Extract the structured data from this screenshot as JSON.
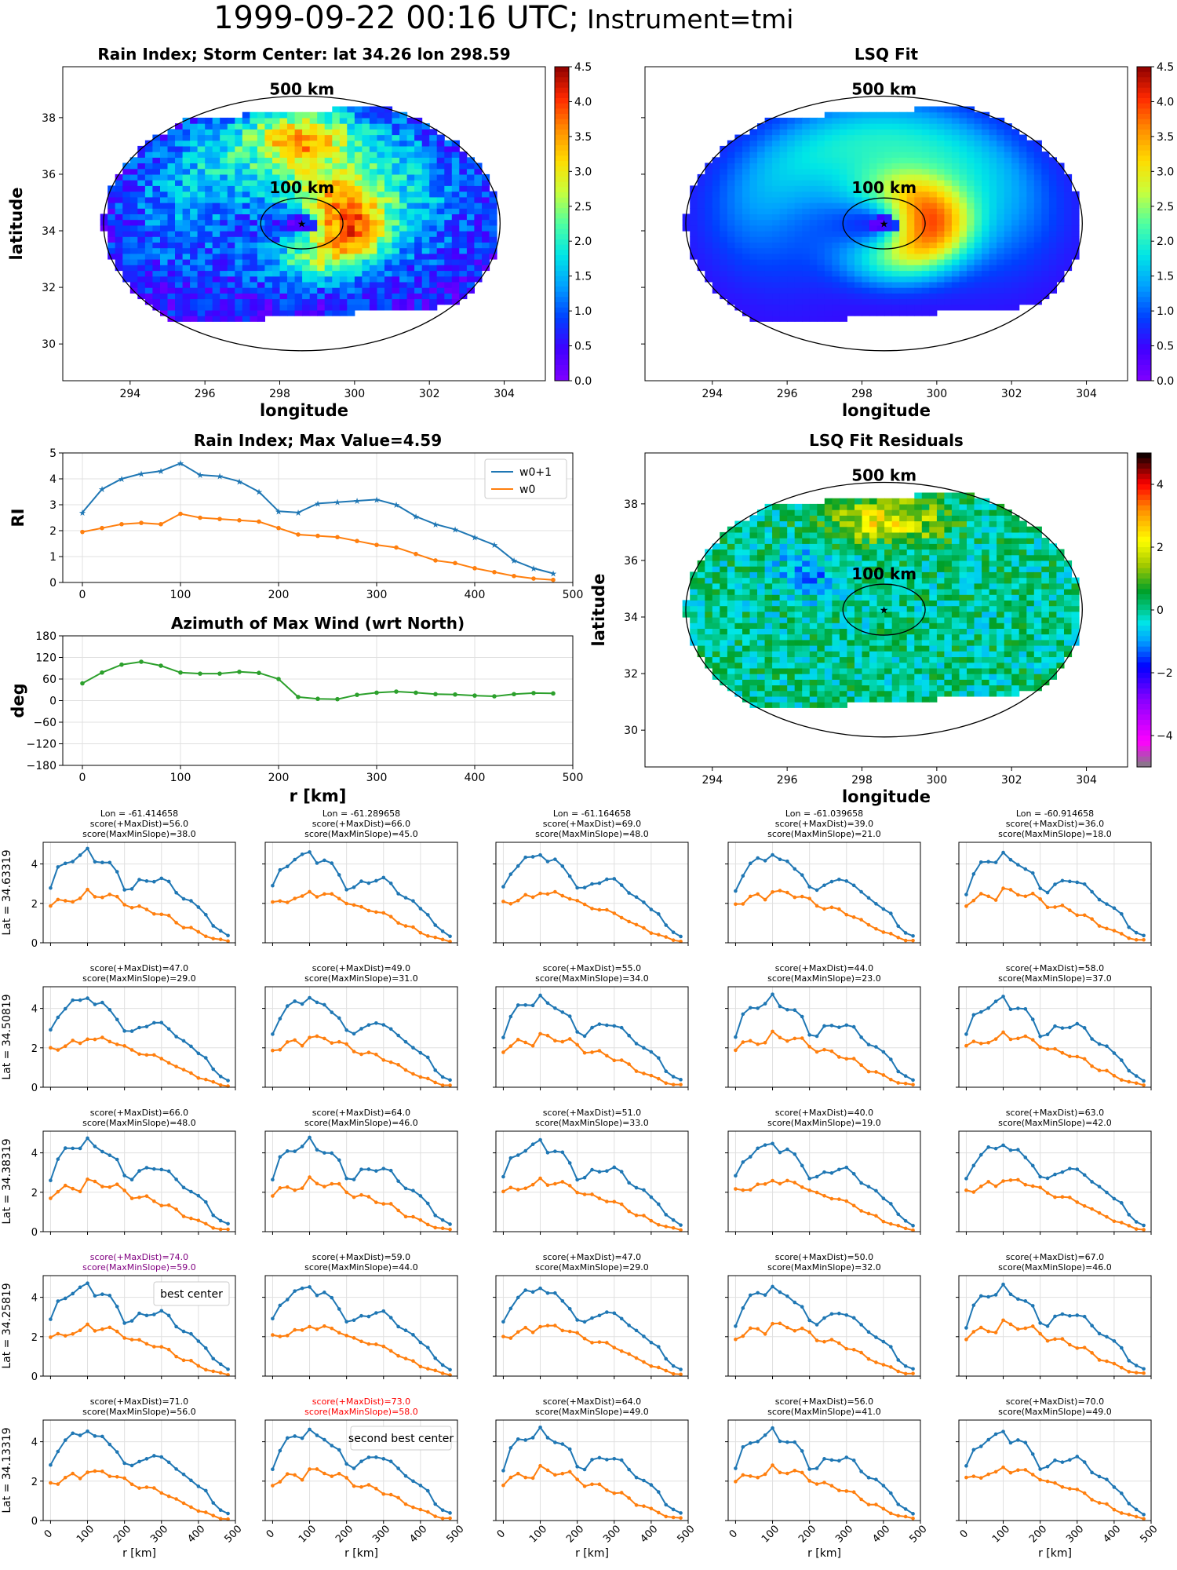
{
  "suptitle": {
    "main": "1999-09-22 00:16 UTC;",
    "sub": "Instrument=tmi"
  },
  "colors": {
    "w0p1": "#1f77b4",
    "w0": "#ff7f0e",
    "az": "#2ca02c",
    "best": "#800080",
    "second": "#ff0000",
    "ring": "#000000"
  },
  "maps": {
    "rain": {
      "title": "Rain Index; Storm Center: lat 34.26 lon 298.59",
      "xlabel": "longitude",
      "ylabel": "latitude",
      "ring_outer": "500 km",
      "ring_inner": "100 km",
      "xticks": [
        "294",
        "296",
        "298",
        "300",
        "302",
        "304"
      ],
      "yticks": [
        "30",
        "32",
        "34",
        "36",
        "38"
      ],
      "cbar_ticks": [
        "0.0",
        "0.5",
        "1.0",
        "1.5",
        "2.0",
        "2.5",
        "3.0",
        "3.5",
        "4.0",
        "4.5"
      ]
    },
    "fit": {
      "title": "LSQ Fit",
      "xlabel": "longitude",
      "ring_outer": "500 km",
      "ring_inner": "100 km",
      "xticks": [
        "294",
        "296",
        "298",
        "300",
        "302",
        "304"
      ],
      "cbar_ticks": [
        "0.0",
        "0.5",
        "1.0",
        "1.5",
        "2.0",
        "2.5",
        "3.0",
        "3.5",
        "4.0",
        "4.5"
      ]
    },
    "resid": {
      "title": "LSQ Fit Residuals",
      "xlabel": "longitude",
      "ylabel": "latitude",
      "ring_outer": "500 km",
      "ring_inner": "100 km",
      "xticks": [
        "294",
        "296",
        "298",
        "300",
        "302",
        "304"
      ],
      "yticks": [
        "30",
        "32",
        "34",
        "36",
        "38"
      ],
      "cbar_ticks": [
        "−4",
        "−2",
        "0",
        "2",
        "4"
      ]
    }
  },
  "chart_data": [
    {
      "type": "line",
      "title": "Rain Index; Max Value=4.59",
      "ylabel": "RI",
      "xlabel": "",
      "ylim": [
        0,
        5
      ],
      "xlim": [
        -20,
        500
      ],
      "legend": "top-right",
      "x": [
        0,
        20,
        40,
        60,
        80,
        100,
        120,
        140,
        160,
        180,
        200,
        220,
        240,
        260,
        280,
        300,
        320,
        340,
        360,
        380,
        400,
        420,
        440,
        460,
        480
      ],
      "series": [
        {
          "name": "w0+1",
          "values": [
            2.7,
            3.6,
            4.0,
            4.2,
            4.3,
            4.6,
            4.15,
            4.1,
            3.9,
            3.5,
            2.75,
            2.7,
            3.05,
            3.1,
            3.15,
            3.2,
            3.0,
            2.55,
            2.25,
            2.05,
            1.75,
            1.45,
            0.85,
            0.55,
            0.35
          ]
        },
        {
          "name": "w0",
          "values": [
            1.95,
            2.1,
            2.25,
            2.3,
            2.25,
            2.65,
            2.5,
            2.45,
            2.4,
            2.35,
            2.1,
            1.85,
            1.8,
            1.75,
            1.6,
            1.45,
            1.35,
            1.1,
            0.85,
            0.75,
            0.55,
            0.4,
            0.25,
            0.15,
            0.1
          ]
        }
      ]
    },
    {
      "type": "line",
      "title": "Azimuth of Max Wind (wrt North)",
      "ylabel": "deg",
      "xlabel": "r [km]",
      "ylim": [
        -180,
        180
      ],
      "xlim": [
        -20,
        500
      ],
      "x": [
        0,
        20,
        40,
        60,
        80,
        100,
        120,
        140,
        160,
        180,
        200,
        220,
        240,
        260,
        280,
        300,
        320,
        340,
        360,
        380,
        400,
        420,
        440,
        460,
        480
      ],
      "series": [
        {
          "values": [
            48,
            78,
            100,
            108,
            97,
            78,
            75,
            75,
            80,
            77,
            60,
            10,
            5,
            4,
            16,
            22,
            25,
            22,
            18,
            17,
            14,
            12,
            18,
            21,
            20
          ]
        }
      ]
    }
  ],
  "grid": {
    "xticks": [
      "0",
      "100",
      "200",
      "300",
      "400",
      "500"
    ],
    "yticks": [
      "0",
      "2",
      "4"
    ],
    "xlabel": "r [km]",
    "row_labels": [
      "Lat = 34.63319",
      "Lat = 34.50819",
      "Lat = 34.38319",
      "Lat = 34.25819",
      "Lat = 34.13319"
    ],
    "lon_labels": [
      "Lon = -61.414658",
      "Lon = -61.289658",
      "Lon = -61.164658",
      "Lon = -61.039658",
      "Lon = -60.914658"
    ],
    "legend_best": "best center",
    "legend_second": "second best center",
    "scores": [
      [
        [
          "score(+MaxDist)=56.0",
          "score(MaxMinSlope)=38.0"
        ],
        [
          "score(+MaxDist)=66.0",
          "score(MaxMinSlope)=45.0"
        ],
        [
          "score(+MaxDist)=69.0",
          "score(MaxMinSlope)=48.0"
        ],
        [
          "score(+MaxDist)=39.0",
          "score(MaxMinSlope)=21.0"
        ],
        [
          "score(+MaxDist)=36.0",
          "score(MaxMinSlope)=18.0"
        ]
      ],
      [
        [
          "score(+MaxDist)=47.0",
          "score(MaxMinSlope)=29.0"
        ],
        [
          "score(+MaxDist)=49.0",
          "score(MaxMinSlope)=31.0"
        ],
        [
          "score(+MaxDist)=55.0",
          "score(MaxMinSlope)=34.0"
        ],
        [
          "score(+MaxDist)=44.0",
          "score(MaxMinSlope)=23.0"
        ],
        [
          "score(+MaxDist)=58.0",
          "score(MaxMinSlope)=37.0"
        ]
      ],
      [
        [
          "score(+MaxDist)=66.0",
          "score(MaxMinSlope)=48.0"
        ],
        [
          "score(+MaxDist)=64.0",
          "score(MaxMinSlope)=46.0"
        ],
        [
          "score(+MaxDist)=51.0",
          "score(MaxMinSlope)=33.0"
        ],
        [
          "score(+MaxDist)=40.0",
          "score(MaxMinSlope)=19.0"
        ],
        [
          "score(+MaxDist)=63.0",
          "score(MaxMinSlope)=42.0"
        ]
      ],
      [
        [
          "score(+MaxDist)=74.0",
          "score(MaxMinSlope)=59.0"
        ],
        [
          "score(+MaxDist)=59.0",
          "score(MaxMinSlope)=44.0"
        ],
        [
          "score(+MaxDist)=47.0",
          "score(MaxMinSlope)=29.0"
        ],
        [
          "score(+MaxDist)=50.0",
          "score(MaxMinSlope)=32.0"
        ],
        [
          "score(+MaxDist)=67.0",
          "score(MaxMinSlope)=46.0"
        ]
      ],
      [
        [
          "score(+MaxDist)=71.0",
          "score(MaxMinSlope)=56.0"
        ],
        [
          "score(+MaxDist)=73.0",
          "score(MaxMinSlope)=58.0"
        ],
        [
          "score(+MaxDist)=64.0",
          "score(MaxMinSlope)=49.0"
        ],
        [
          "score(+MaxDist)=56.0",
          "score(MaxMinSlope)=41.0"
        ],
        [
          "score(+MaxDist)=70.0",
          "score(MaxMinSlope)=49.0"
        ]
      ]
    ],
    "highlight": [
      [
        3,
        0,
        "best"
      ],
      [
        4,
        1,
        "second"
      ]
    ]
  }
}
